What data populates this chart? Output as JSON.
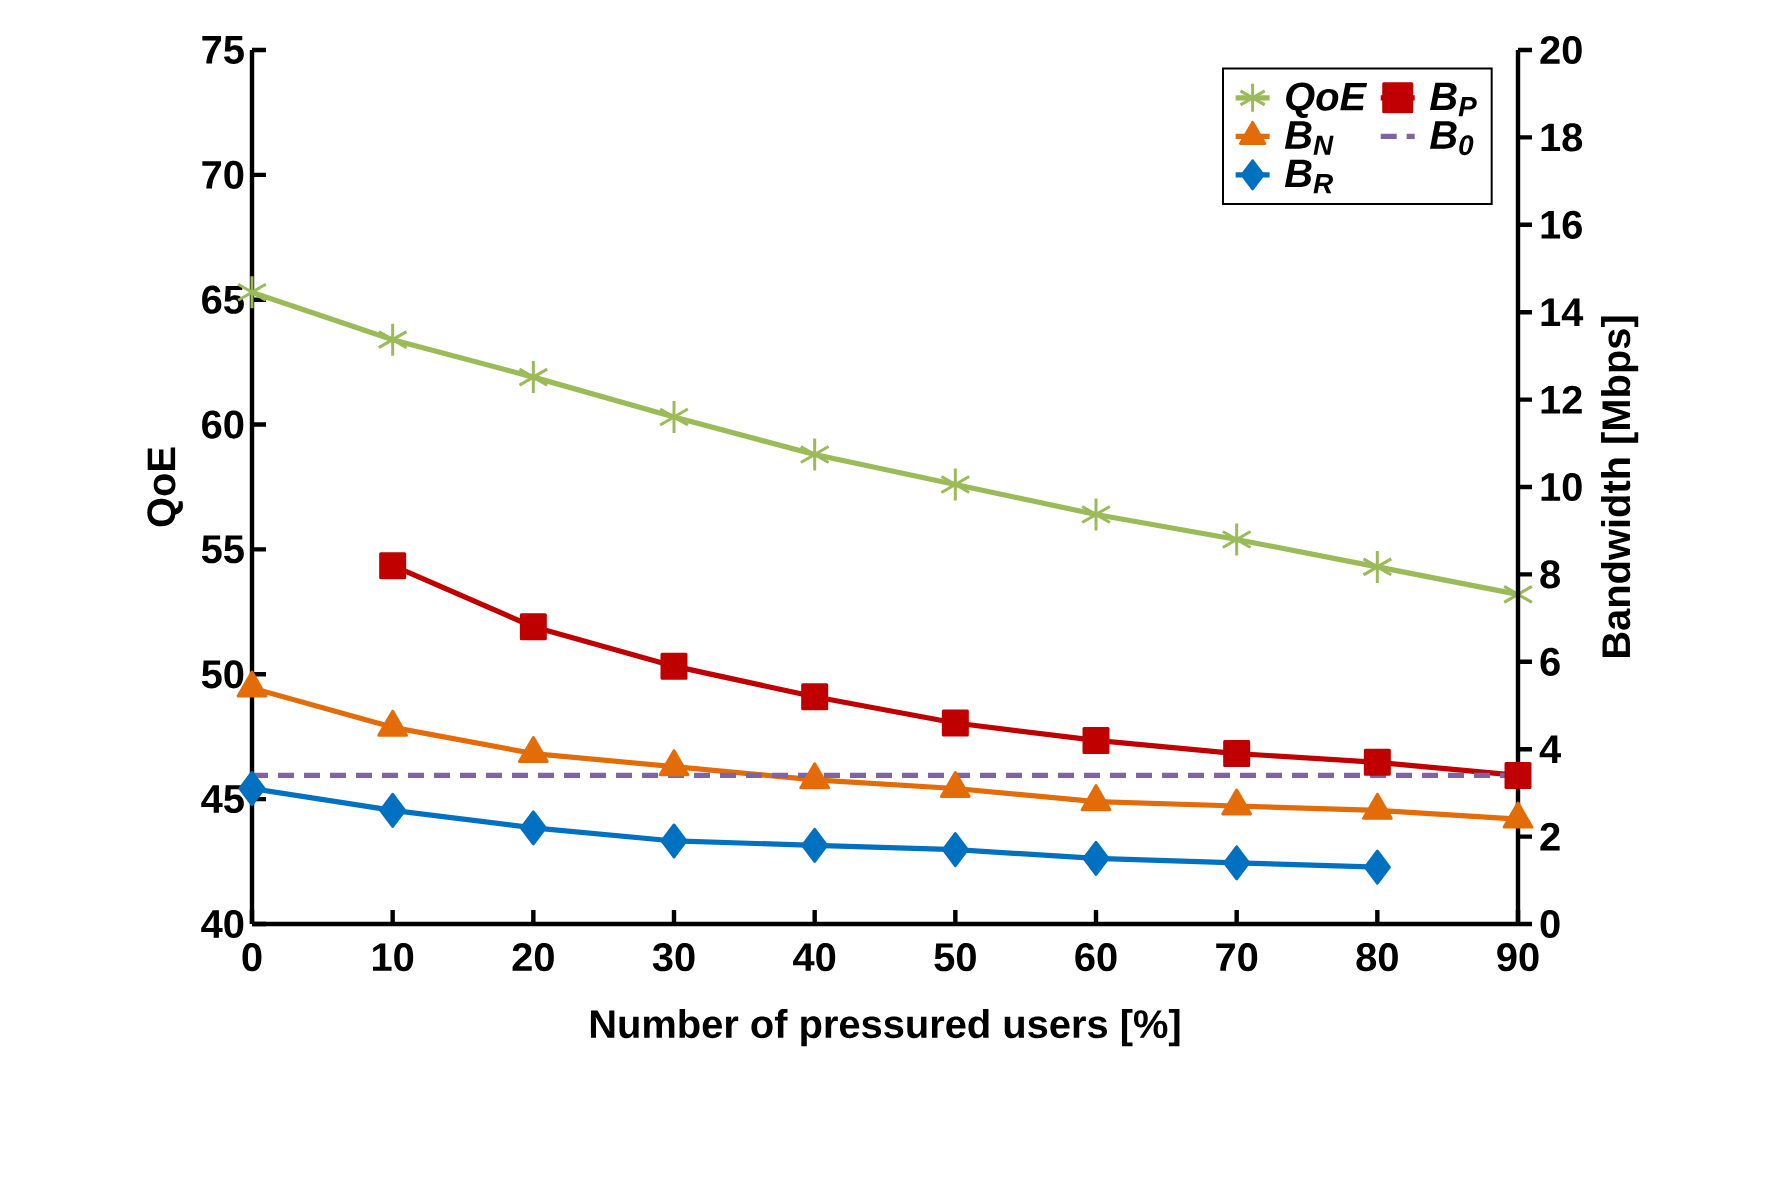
{
  "chart_data": {
    "type": "line",
    "xlabel": "Number of pressured users [%]",
    "ylabel": "QoE",
    "y2label": "Bandwidth  [Mbps]",
    "x": [
      0,
      10,
      20,
      30,
      40,
      50,
      60,
      70,
      80,
      90
    ],
    "xlim": [
      0,
      90
    ],
    "xticks": [
      0,
      10,
      20,
      30,
      40,
      50,
      60,
      70,
      80,
      90
    ],
    "ylim": [
      40,
      75
    ],
    "yticks": [
      40,
      45,
      50,
      55,
      60,
      65,
      70,
      75
    ],
    "y2lim": [
      0,
      20
    ],
    "y2ticks": [
      0,
      2,
      4,
      6,
      8,
      10,
      12,
      14,
      16,
      18,
      20
    ],
    "legend": "top right",
    "grid": false,
    "series": [
      {
        "name": "QoE",
        "color": "#9bbb59",
        "marker": "cross",
        "line_style": "solid",
        "axis": "y",
        "values": [
          65.3,
          63.4,
          61.9,
          60.3,
          58.8,
          57.6,
          56.4,
          55.4,
          54.3,
          53.2
        ]
      },
      {
        "name": "B$_{P}$",
        "color": "#c00000",
        "marker": "square",
        "line_style": "solid",
        "axis": "y2",
        "values": [
          null,
          8.2,
          6.8,
          5.9,
          5.2,
          4.6,
          4.2,
          3.9,
          3.7,
          3.4
        ]
      },
      {
        "name": "B$_{N}$",
        "color": "#e36c09",
        "marker": "triangle",
        "line_style": "solid",
        "axis": "y2",
        "values": [
          5.4,
          4.5,
          3.9,
          3.6,
          3.3,
          3.1,
          2.8,
          2.7,
          2.6,
          2.4
        ]
      },
      {
        "name": "B$_{0}$",
        "color": "#8064a2",
        "marker": "none",
        "line_style": "dashed",
        "axis": "y2",
        "values": [
          3.4,
          3.4,
          3.4,
          3.4,
          3.4,
          3.4,
          3.4,
          3.4,
          3.4,
          3.4
        ]
      },
      {
        "name": "B$_{R}$",
        "color": "#0070c0",
        "marker": "diamond",
        "line_style": "solid",
        "axis": "y2",
        "values": [
          3.1,
          2.6,
          2.2,
          1.9,
          1.8,
          1.7,
          1.5,
          1.4,
          1.3,
          null
        ]
      }
    ]
  }
}
